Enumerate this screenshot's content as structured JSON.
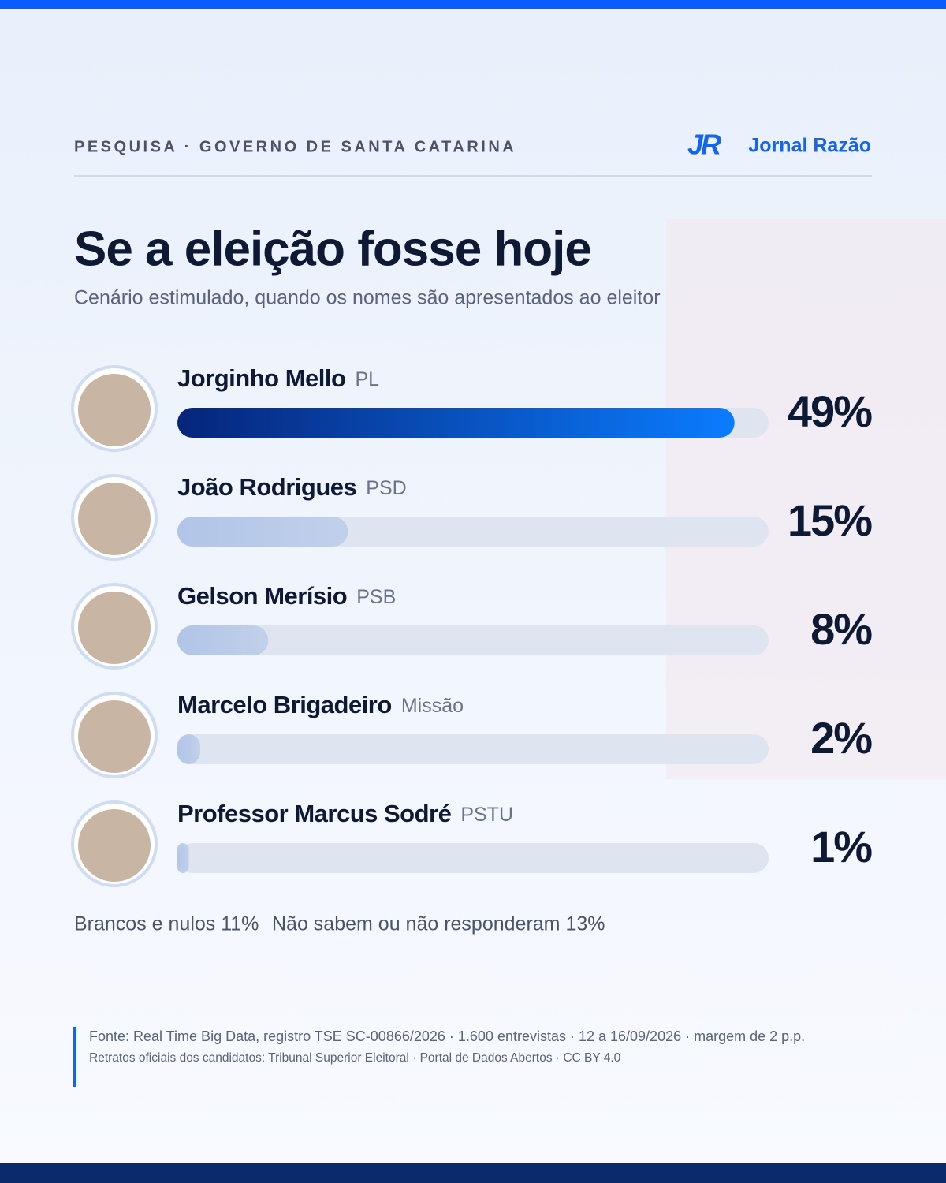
{
  "header": {
    "kicker": "PESQUISA · GOVERNO DE SANTA CATARINA",
    "logo": "JR",
    "brand": "Jornal Razão"
  },
  "chart_data": {
    "type": "bar",
    "orientation": "horizontal",
    "title": "Se a eleição fosse hoje",
    "subtitle": "Cenário estimulado, quando os nomes são apresentados ao eleitor",
    "categories": [
      "Jorginho Mello",
      "João Rodrigues",
      "Gelson Merísio",
      "Marcelo Brigadeiro",
      "Professor Marcus Sodré"
    ],
    "parties": [
      "PL",
      "PSD",
      "PSB",
      "Missão",
      "PSTU"
    ],
    "values": [
      49,
      15,
      8,
      2,
      1
    ],
    "value_labels": [
      "49%",
      "15%",
      "8%",
      "2%",
      "1%"
    ],
    "xlim": [
      0,
      52
    ],
    "highlight_color": "#0b7cff",
    "color": "#a9bfe6",
    "track_color": "#dfe5f0"
  },
  "notes": [
    "Brancos e nulos 11%",
    "Não sabem ou não responderam 13%"
  ],
  "footer": {
    "source": "Fonte: Real Time Big Data, registro TSE SC-00866/2026 · 1.600 entrevistas · 12 a 16/09/2026 · margem de 2 p.p.",
    "credits": "Retratos oficiais dos candidatos: Tribunal Superior Eleitoral · Portal de Dados Abertos · CC BY 4.0"
  }
}
